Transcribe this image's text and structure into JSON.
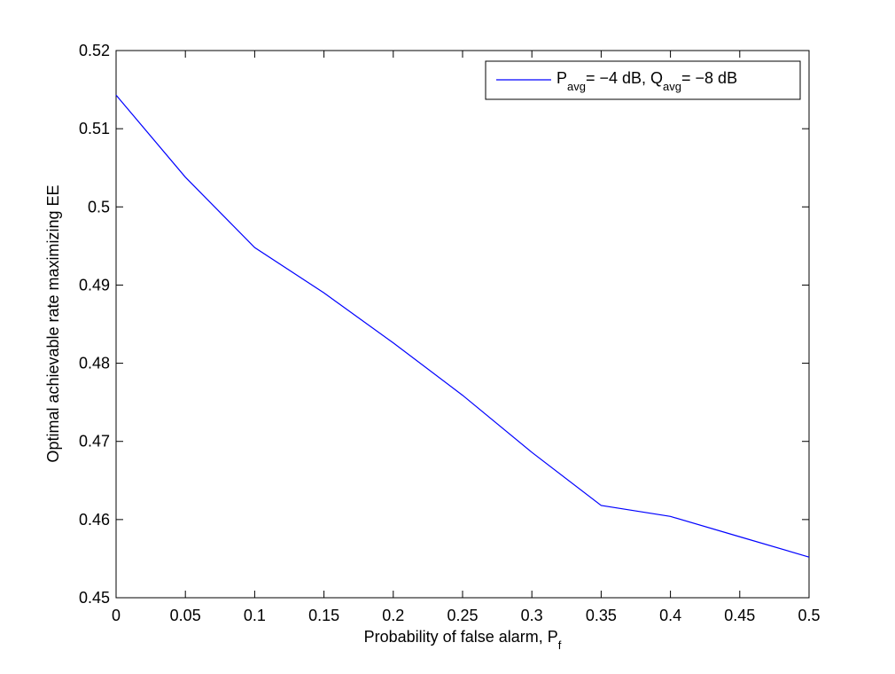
{
  "chart_data": {
    "type": "line",
    "xlabel": [
      "Probability of false alarm, P",
      "f"
    ],
    "ylabel": "Optimal achievable rate maximizing EE",
    "x": [
      0,
      0.05,
      0.1,
      0.15,
      0.2,
      0.25,
      0.3,
      0.35,
      0.4,
      0.45,
      0.5
    ],
    "series": [
      {
        "name": [
          "P",
          "avg",
          "= −4 dB, Q",
          "avg",
          "= −8 dB"
        ],
        "color": "#0000ff",
        "values": [
          0.5143,
          0.5038,
          0.4948,
          0.489,
          0.4826,
          0.4759,
          0.4686,
          0.4618,
          0.4604,
          0.4578,
          0.4552
        ]
      }
    ],
    "xlim": [
      0,
      0.5
    ],
    "xticks": [
      0,
      0.05,
      0.1,
      0.15,
      0.2,
      0.25,
      0.3,
      0.35,
      0.4,
      0.45,
      0.5
    ],
    "ylim": [
      0.45,
      0.52
    ],
    "yticks": [
      0.45,
      0.46,
      0.47,
      0.48,
      0.49,
      0.5,
      0.51,
      0.52
    ],
    "grid": false,
    "legend": "upper right"
  }
}
